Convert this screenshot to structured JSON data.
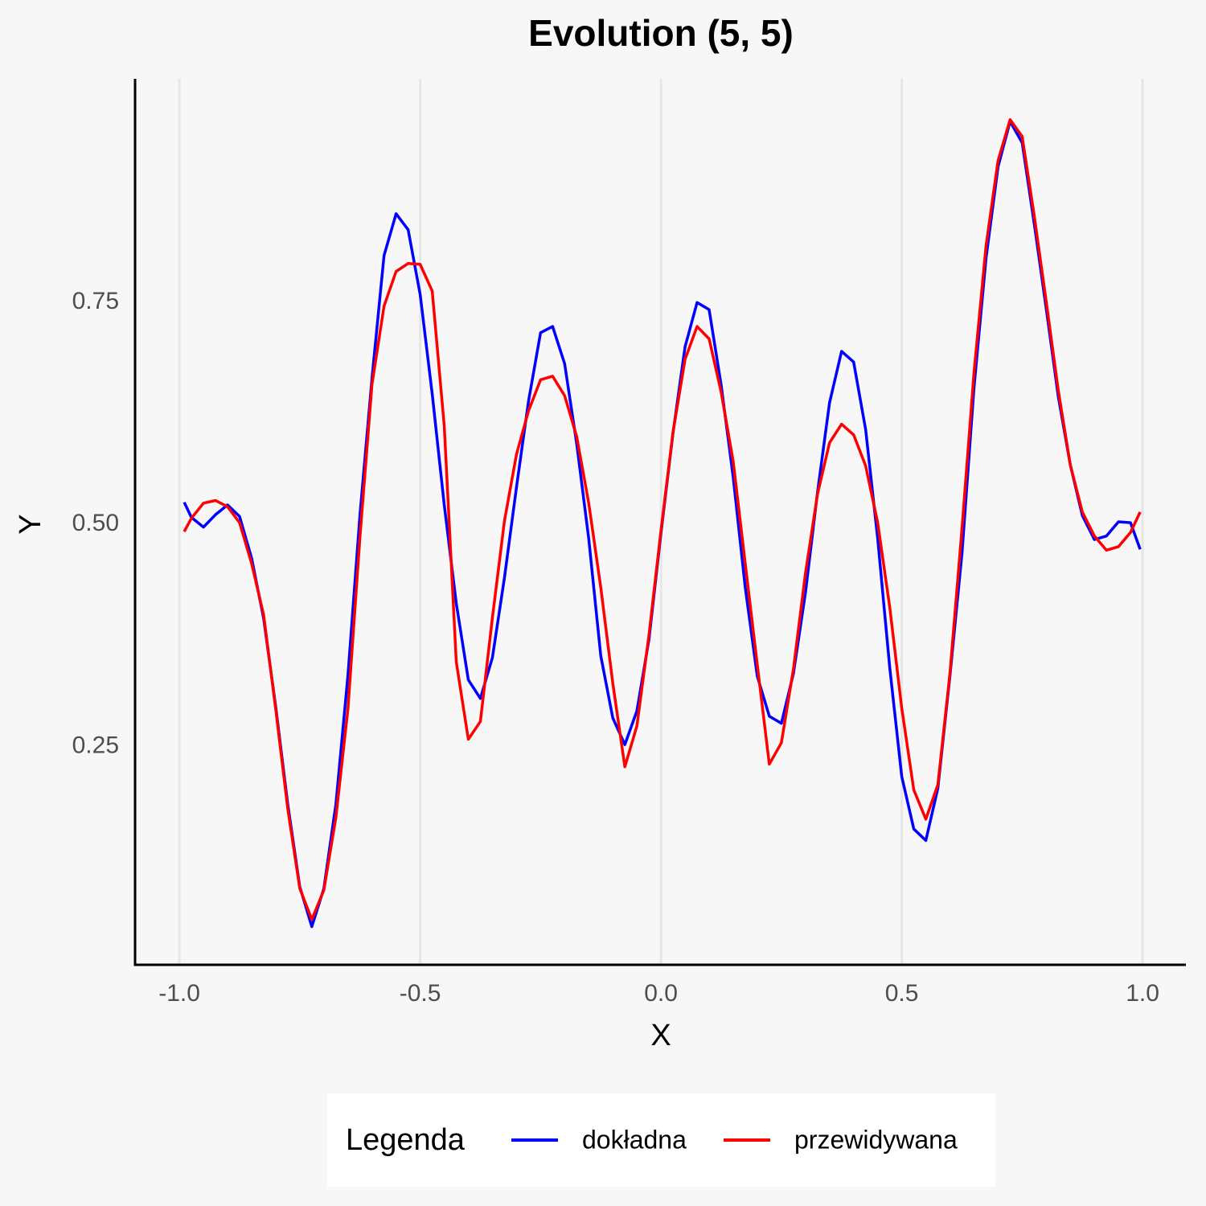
{
  "chart_data": {
    "type": "line",
    "title": "Evolution (5, 5)",
    "x_label": "X",
    "y_label": "Y",
    "legend_title": "Legenda",
    "legend": "bottom",
    "grid_x": true,
    "grid_y": false,
    "xlim": [
      -1.092,
      1.09
    ],
    "ylim": [
      0.004,
      1.002
    ],
    "xticks": [
      {
        "value": -1,
        "label": "-1.0"
      },
      -0.5,
      {
        "value": 0,
        "label": "0.0"
      },
      0.5,
      {
        "value": 1,
        "label": "1.0"
      }
    ],
    "yticks": [
      0.25,
      {
        "value": 0.5,
        "label": "0.50"
      },
      0.75
    ],
    "x": [
      -0.99,
      -0.975,
      -0.95,
      -0.925,
      -0.9,
      -0.875,
      -0.85,
      -0.825,
      -0.8,
      -0.775,
      -0.75,
      -0.725,
      -0.7,
      -0.675,
      -0.65,
      -0.625,
      -0.6,
      -0.575,
      -0.55,
      -0.525,
      -0.5,
      -0.475,
      -0.45,
      -0.425,
      -0.4,
      -0.375,
      -0.35,
      -0.325,
      -0.3,
      -0.275,
      -0.25,
      -0.225,
      -0.2,
      -0.175,
      -0.15,
      -0.125,
      -0.1,
      -0.075,
      -0.05,
      -0.025,
      0,
      0.025,
      0.05,
      0.075,
      0.1,
      0.125,
      0.15,
      0.175,
      0.2,
      0.225,
      0.25,
      0.275,
      0.3,
      0.325,
      0.35,
      0.375,
      0.4,
      0.425,
      0.45,
      0.475,
      0.5,
      0.525,
      0.55,
      0.575,
      0.6,
      0.625,
      0.65,
      0.675,
      0.7,
      0.725,
      0.75,
      0.775,
      0.8,
      0.825,
      0.85,
      0.875,
      0.9,
      0.925,
      0.95,
      0.975,
      0.995
    ],
    "series": [
      {
        "name": "dokładna",
        "color": "#0000ff",
        "values": [
          0.525,
          0.508,
          0.497,
          0.511,
          0.522,
          0.509,
          0.462,
          0.394,
          0.295,
          0.185,
          0.092,
          0.047,
          0.09,
          0.185,
          0.33,
          0.511,
          0.665,
          0.803,
          0.85,
          0.832,
          0.759,
          0.647,
          0.522,
          0.411,
          0.325,
          0.304,
          0.35,
          0.44,
          0.542,
          0.639,
          0.716,
          0.723,
          0.681,
          0.591,
          0.484,
          0.352,
          0.282,
          0.252,
          0.29,
          0.37,
          0.49,
          0.603,
          0.7,
          0.75,
          0.742,
          0.657,
          0.553,
          0.429,
          0.329,
          0.284,
          0.276,
          0.332,
          0.423,
          0.536,
          0.637,
          0.695,
          0.683,
          0.607,
          0.484,
          0.339,
          0.216,
          0.157,
          0.144,
          0.203,
          0.329,
          0.467,
          0.654,
          0.8,
          0.903,
          0.954,
          0.93,
          0.839,
          0.743,
          0.644,
          0.567,
          0.51,
          0.483,
          0.487,
          0.503,
          0.502,
          0.472
        ]
      },
      {
        "name": "przewidywana",
        "color": "#ff0000",
        "values": [
          0.492,
          0.507,
          0.524,
          0.527,
          0.52,
          0.502,
          0.456,
          0.398,
          0.292,
          0.18,
          0.09,
          0.055,
          0.088,
          0.17,
          0.292,
          0.486,
          0.658,
          0.746,
          0.785,
          0.794,
          0.793,
          0.763,
          0.611,
          0.345,
          0.258,
          0.278,
          0.395,
          0.504,
          0.579,
          0.628,
          0.663,
          0.667,
          0.645,
          0.599,
          0.524,
          0.429,
          0.321,
          0.227,
          0.273,
          0.375,
          0.493,
          0.604,
          0.686,
          0.723,
          0.709,
          0.649,
          0.571,
          0.456,
          0.342,
          0.23,
          0.254,
          0.337,
          0.445,
          0.534,
          0.592,
          0.613,
          0.601,
          0.566,
          0.502,
          0.407,
          0.293,
          0.201,
          0.168,
          0.207,
          0.332,
          0.495,
          0.671,
          0.814,
          0.91,
          0.956,
          0.937,
          0.848,
          0.751,
          0.651,
          0.567,
          0.514,
          0.487,
          0.471,
          0.475,
          0.491,
          0.514
        ]
      }
    ]
  }
}
